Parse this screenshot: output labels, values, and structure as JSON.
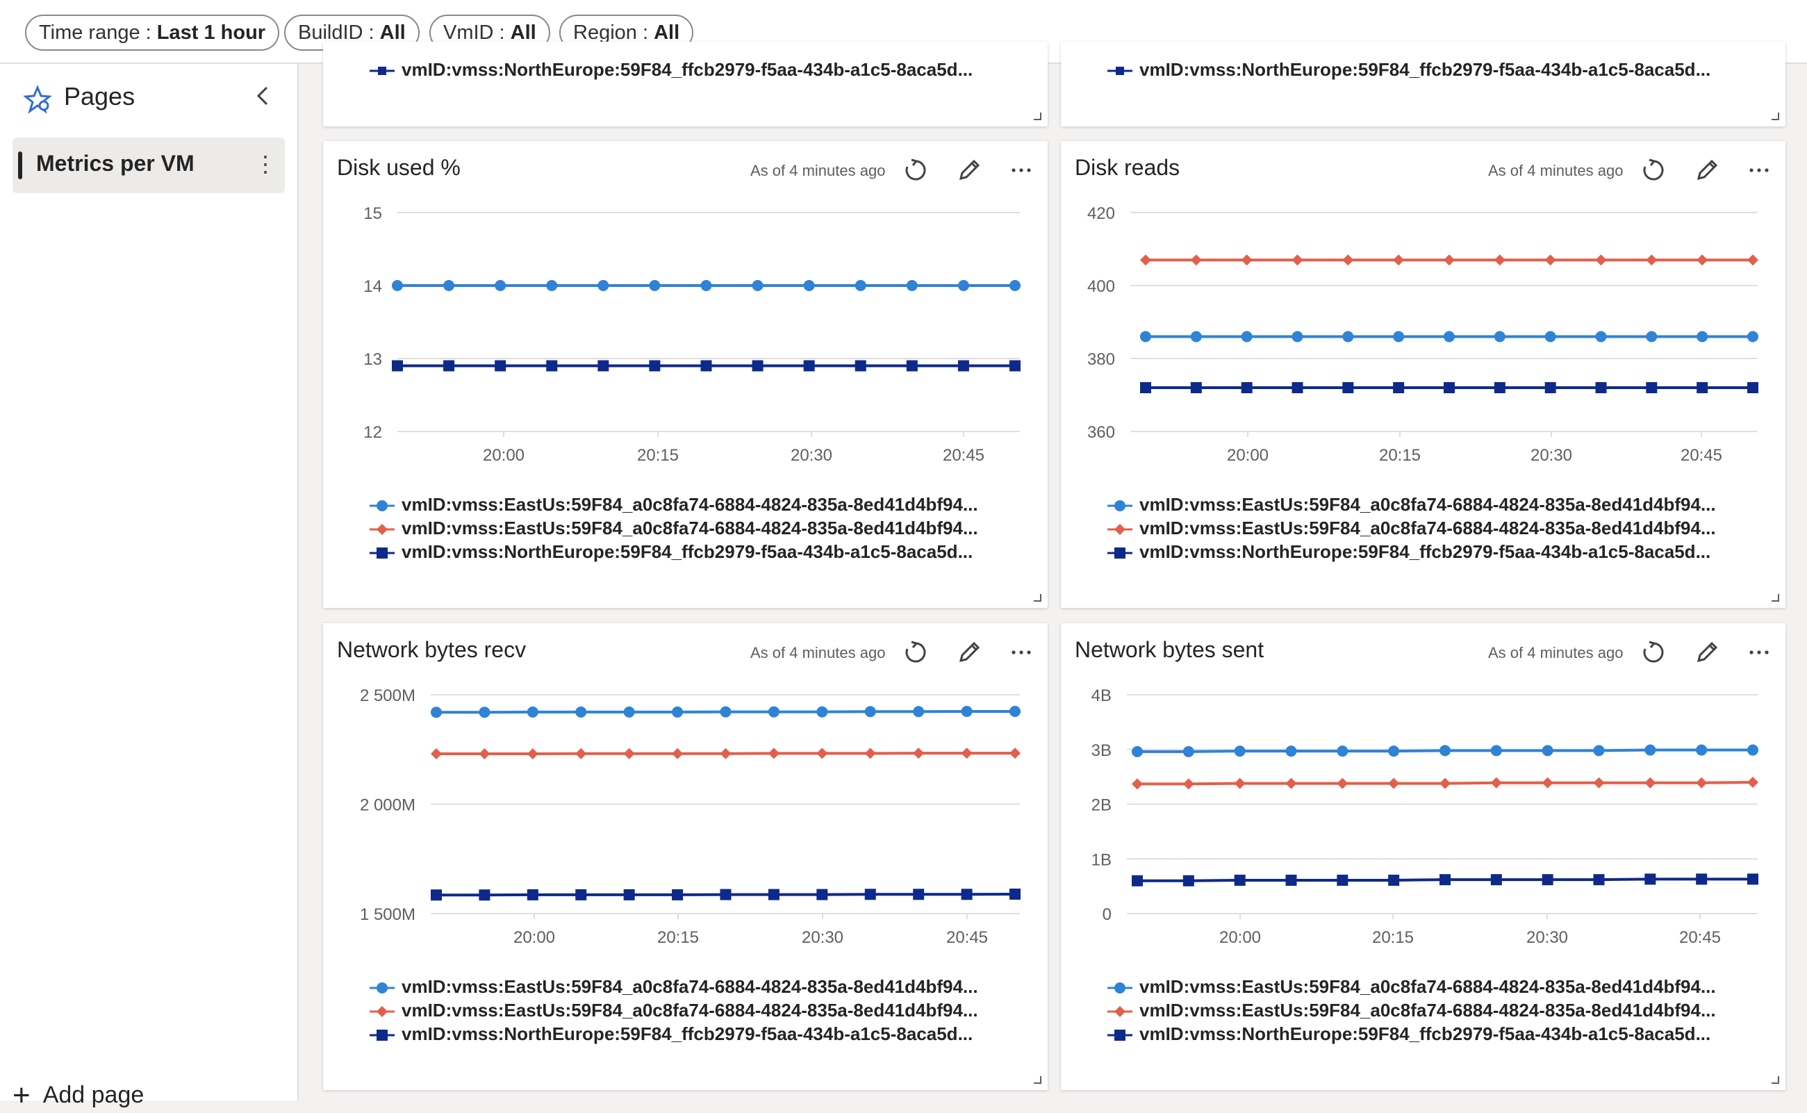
{
  "filters": [
    {
      "key": "Time range",
      "value": "Last 1 hour"
    },
    {
      "key": "BuildID",
      "value": "All"
    },
    {
      "key": "VmID",
      "value": "All"
    },
    {
      "key": "Region",
      "value": "All"
    }
  ],
  "sidebar": {
    "title": "Pages",
    "items": [
      {
        "label": "Metrics per VM",
        "more": "⋮"
      }
    ],
    "add_page": "Add page"
  },
  "colors": {
    "series1": "#2f83d6",
    "series2": "#e25f4b",
    "series3": "#0d2a8a",
    "grid": "#e1dfdd",
    "axis": "#605e5c"
  },
  "top_tiles": [
    {
      "legend": "vmID:vmss:NorthEurope:59F84_ffcb2979-f5aa-434b-a1c5-8aca5d..."
    },
    {
      "legend": "vmID:vmss:NorthEurope:59F84_ffcb2979-f5aa-434b-a1c5-8aca5d..."
    }
  ],
  "legend_labels": [
    "vmID:vmss:EastUs:59F84_a0c8fa74-6884-4824-835a-8ed41d4bf94...",
    "vmID:vmss:EastUs:59F84_a0c8fa74-6884-4824-835a-8ed41d4bf94...",
    "vmID:vmss:NorthEurope:59F84_ffcb2979-f5aa-434b-a1c5-8aca5d..."
  ],
  "asof": "As of 4 minutes ago",
  "chart_data": [
    {
      "type": "line",
      "title": "Disk used %",
      "x": [
        "19:52",
        "19:56",
        "20:00",
        "20:04",
        "20:08",
        "20:12",
        "20:16",
        "20:20",
        "20:24",
        "20:28",
        "20:32",
        "20:36",
        "20:40"
      ],
      "xticks": [
        "20:00",
        "20:15",
        "20:30",
        "20:45"
      ],
      "yticks": [
        "15",
        "14",
        "13",
        "12"
      ],
      "ylim": [
        12,
        15
      ],
      "series": [
        {
          "name": "vmID:vmss:EastUs:59F84_a0c8fa74-6884-4824-835a-8ed41d4bf94...",
          "values": [
            14,
            14,
            14,
            14,
            14,
            14,
            14,
            14,
            14,
            14,
            14,
            14,
            14
          ]
        },
        {
          "name": "vmID:vmss:EastUs:59F84_a0c8fa74-6884-4824-835a-8ed41d4bf94...",
          "values": [
            14,
            14,
            14,
            14,
            14,
            14,
            14,
            14,
            14,
            14,
            14,
            14,
            14
          ]
        },
        {
          "name": "vmID:vmss:NorthEurope:59F84_ffcb2979-f5aa-434b-a1c5-8aca5d...",
          "values": [
            12.9,
            12.9,
            12.9,
            12.9,
            12.9,
            12.9,
            12.9,
            12.9,
            12.9,
            12.9,
            12.9,
            12.9,
            12.9
          ]
        }
      ]
    },
    {
      "type": "line",
      "title": "Disk reads",
      "x": [
        "19:52",
        "19:56",
        "20:00",
        "20:04",
        "20:08",
        "20:12",
        "20:16",
        "20:20",
        "20:24",
        "20:28",
        "20:32",
        "20:36",
        "20:40"
      ],
      "xticks": [
        "20:00",
        "20:15",
        "20:30",
        "20:45"
      ],
      "yticks": [
        "420",
        "400",
        "380",
        "360"
      ],
      "ylim": [
        360,
        420
      ],
      "series": [
        {
          "name": "vmID:vmss:EastUs:59F84_a0c8fa74-6884-4824-835a-8ed41d4bf94...",
          "values": [
            386,
            386,
            386,
            386,
            386,
            386,
            386,
            386,
            386,
            386,
            386,
            386,
            386
          ]
        },
        {
          "name": "vmID:vmss:EastUs:59F84_a0c8fa74-6884-4824-835a-8ed41d4bf94...",
          "values": [
            407,
            407,
            407,
            407,
            407,
            407,
            407,
            407,
            407,
            407,
            407,
            407,
            407
          ]
        },
        {
          "name": "vmID:vmss:NorthEurope:59F84_ffcb2979-f5aa-434b-a1c5-8aca5d...",
          "values": [
            372,
            372,
            372,
            372,
            372,
            372,
            372,
            372,
            372,
            372,
            372,
            372,
            372
          ]
        }
      ]
    },
    {
      "type": "line",
      "title": "Network bytes recv",
      "x": [
        "19:52",
        "19:56",
        "20:00",
        "20:04",
        "20:08",
        "20:12",
        "20:16",
        "20:20",
        "20:24",
        "20:28",
        "20:32",
        "20:36",
        "20:40"
      ],
      "xticks": [
        "20:00",
        "20:15",
        "20:30",
        "20:45"
      ],
      "yticks": [
        "2 500M",
        "2 000M",
        "1 500M"
      ],
      "ylim": [
        1500,
        2500
      ],
      "series": [
        {
          "name": "vmID:vmss:EastUs:59F84_a0c8fa74-6884-4824-835a-8ed41d4bf94...",
          "values": [
            2420,
            2420,
            2421,
            2421,
            2421,
            2421,
            2422,
            2422,
            2422,
            2423,
            2423,
            2424,
            2424
          ]
        },
        {
          "name": "vmID:vmss:EastUs:59F84_a0c8fa74-6884-4824-835a-8ed41d4bf94...",
          "values": [
            2230,
            2230,
            2230,
            2231,
            2231,
            2231,
            2231,
            2232,
            2232,
            2232,
            2233,
            2233,
            2233
          ]
        },
        {
          "name": "vmID:vmss:NorthEurope:59F84_ffcb2979-f5aa-434b-a1c5-8aca5d...",
          "values": [
            1585,
            1585,
            1586,
            1586,
            1586,
            1586,
            1587,
            1587,
            1587,
            1588,
            1588,
            1588,
            1589
          ]
        }
      ]
    },
    {
      "type": "line",
      "title": "Network bytes sent",
      "x": [
        "19:52",
        "19:56",
        "20:00",
        "20:04",
        "20:08",
        "20:12",
        "20:16",
        "20:20",
        "20:24",
        "20:28",
        "20:32",
        "20:36",
        "20:40"
      ],
      "xticks": [
        "20:00",
        "20:15",
        "20:30",
        "20:45"
      ],
      "yticks": [
        "4B",
        "3B",
        "2B",
        "1B",
        "0"
      ],
      "ylim": [
        0,
        4
      ],
      "series": [
        {
          "name": "vmID:vmss:EastUs:59F84_a0c8fa74-6884-4824-835a-8ed41d4bf94...",
          "values": [
            2.96,
            2.96,
            2.97,
            2.97,
            2.97,
            2.97,
            2.98,
            2.98,
            2.98,
            2.98,
            2.99,
            2.99,
            2.99
          ]
        },
        {
          "name": "vmID:vmss:EastUs:59F84_a0c8fa74-6884-4824-835a-8ed41d4bf94...",
          "values": [
            2.37,
            2.37,
            2.38,
            2.38,
            2.38,
            2.38,
            2.38,
            2.39,
            2.39,
            2.39,
            2.39,
            2.39,
            2.4
          ]
        },
        {
          "name": "vmID:vmss:NorthEurope:59F84_ffcb2979-f5aa-434b-a1c5-8aca5d...",
          "values": [
            0.6,
            0.6,
            0.61,
            0.61,
            0.61,
            0.61,
            0.62,
            0.62,
            0.62,
            0.62,
            0.63,
            0.63,
            0.63
          ]
        }
      ]
    }
  ]
}
